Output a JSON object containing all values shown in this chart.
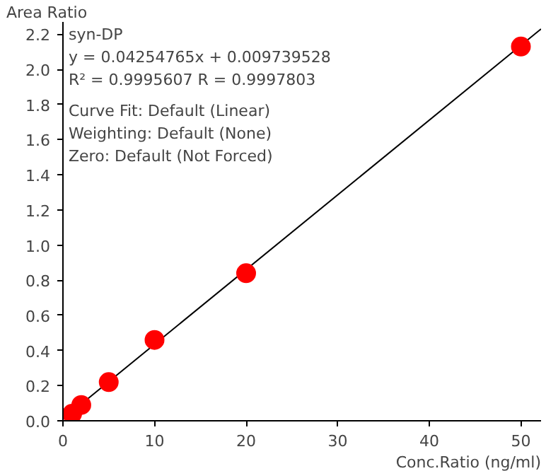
{
  "chart_data": {
    "type": "scatter",
    "xlabel": "Conc.Ratio (ng/ml)",
    "ylabel": "Area Ratio",
    "xlim": [
      0,
      52.2
    ],
    "ylim": [
      0,
      2.27
    ],
    "xticks": [
      0,
      10,
      20,
      30,
      40,
      50
    ],
    "yticks": [
      {
        "value": 0,
        "label": "0.0"
      },
      {
        "value": 0.2,
        "label": "0.2"
      },
      {
        "value": 0.4,
        "label": "0.4"
      },
      {
        "value": 0.6,
        "label": "0.6"
      },
      {
        "value": 0.8,
        "label": "0.8"
      },
      {
        "value": 1.0,
        "label": "1.0"
      },
      {
        "value": 1.2,
        "label": "1.2"
      },
      {
        "value": 1.4,
        "label": "1.4"
      },
      {
        "value": 1.6,
        "label": "1.6"
      },
      {
        "value": 1.8,
        "label": "1.8"
      },
      {
        "value": 2.0,
        "label": "2.0"
      },
      {
        "value": 2.2,
        "label": "2.2"
      }
    ],
    "grid": false,
    "annotations": [
      "syn-DP",
      "y = 0.04254765x + 0.009739528",
      "R² = 0.9995607    R = 0.9997803",
      "Curve Fit: Default (Linear)",
      "Weighting: Default (None)",
      "Zero: Default (Not Forced)"
    ],
    "series": [
      {
        "type": "line",
        "color": "#000000",
        "x": [
          0,
          52.2
        ],
        "values": [
          0.01,
          2.23
        ]
      },
      {
        "color": "#ff0000",
        "marker": "circle",
        "x": [
          1,
          2,
          5,
          10,
          20,
          50
        ],
        "values": [
          0.04,
          0.09,
          0.22,
          0.46,
          0.84,
          2.13
        ]
      }
    ]
  }
}
